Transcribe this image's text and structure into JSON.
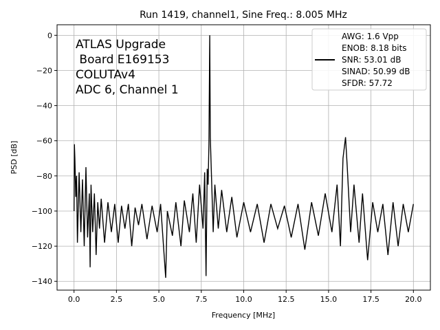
{
  "chart_data": {
    "type": "line",
    "title": "Run 1419, channel1, Sine Freq.: 8.005 MHz",
    "xlabel": "Frequency [MHz]",
    "ylabel": "PSD [dB]",
    "xlim": [
      -1.0,
      21.0
    ],
    "ylim": [
      -145,
      6
    ],
    "xticks": [
      0.0,
      2.5,
      5.0,
      7.5,
      10.0,
      12.5,
      15.0,
      17.5,
      20.0
    ],
    "xtick_labels": [
      "0.0",
      "2.5",
      "5.0",
      "7.5",
      "10.0",
      "12.5",
      "15.0",
      "17.5",
      "20.0"
    ],
    "yticks": [
      0,
      -20,
      -40,
      -60,
      -80,
      -100,
      -120,
      -140
    ],
    "ytick_labels": [
      "0",
      "−20",
      "−40",
      "−60",
      "−80",
      "−100",
      "−120",
      "−140"
    ],
    "grid": true,
    "series_color": "#000000",
    "annotation_lines": [
      "ATLAS Upgrade",
      " Board E169153",
      "COLUTAv4",
      "ADC 6, Channel 1"
    ],
    "legend": {
      "placement": "top-right",
      "lines": [
        "AWG: 1.6 Vpp",
        "ENOB: 8.18 bits",
        "SNR: 53.01 dB",
        "SINAD: 50.99 dB",
        "SFDR: 57.72"
      ]
    },
    "series": [
      {
        "points": [
          [
            0.0,
            -100
          ],
          [
            0.02,
            -62
          ],
          [
            0.05,
            -70
          ],
          [
            0.1,
            -92
          ],
          [
            0.15,
            -80
          ],
          [
            0.2,
            -118
          ],
          [
            0.3,
            -78
          ],
          [
            0.4,
            -112
          ],
          [
            0.5,
            -82
          ],
          [
            0.6,
            -120
          ],
          [
            0.7,
            -75
          ],
          [
            0.8,
            -115
          ],
          [
            0.9,
            -90
          ],
          [
            0.95,
            -132
          ],
          [
            1.0,
            -85
          ],
          [
            1.1,
            -112
          ],
          [
            1.2,
            -90
          ],
          [
            1.3,
            -125
          ],
          [
            1.4,
            -95
          ],
          [
            1.5,
            -110
          ],
          [
            1.6,
            -93
          ],
          [
            1.8,
            -118
          ],
          [
            2.0,
            -95
          ],
          [
            2.2,
            -112
          ],
          [
            2.4,
            -96
          ],
          [
            2.6,
            -118
          ],
          [
            2.8,
            -97
          ],
          [
            3.0,
            -110
          ],
          [
            3.2,
            -96
          ],
          [
            3.4,
            -120
          ],
          [
            3.6,
            -98
          ],
          [
            3.8,
            -108
          ],
          [
            4.0,
            -96
          ],
          [
            4.3,
            -116
          ],
          [
            4.6,
            -97
          ],
          [
            4.9,
            -112
          ],
          [
            5.1,
            -96
          ],
          [
            5.4,
            -138
          ],
          [
            5.5,
            -100
          ],
          [
            5.8,
            -114
          ],
          [
            6.0,
            -95
          ],
          [
            6.3,
            -120
          ],
          [
            6.5,
            -94
          ],
          [
            6.8,
            -112
          ],
          [
            7.0,
            -90
          ],
          [
            7.2,
            -118
          ],
          [
            7.4,
            -85
          ],
          [
            7.6,
            -110
          ],
          [
            7.7,
            -78
          ],
          [
            7.78,
            -137
          ],
          [
            7.85,
            -76
          ],
          [
            7.9,
            -85
          ],
          [
            7.95,
            -62
          ],
          [
            8.0,
            0
          ],
          [
            8.03,
            -58
          ],
          [
            8.1,
            -80
          ],
          [
            8.2,
            -112
          ],
          [
            8.3,
            -85
          ],
          [
            8.5,
            -110
          ],
          [
            8.7,
            -88
          ],
          [
            9.0,
            -112
          ],
          [
            9.3,
            -92
          ],
          [
            9.6,
            -115
          ],
          [
            10.0,
            -95
          ],
          [
            10.4,
            -112
          ],
          [
            10.8,
            -96
          ],
          [
            11.2,
            -118
          ],
          [
            11.6,
            -96
          ],
          [
            12.0,
            -110
          ],
          [
            12.4,
            -97
          ],
          [
            12.8,
            -115
          ],
          [
            13.2,
            -96
          ],
          [
            13.6,
            -122
          ],
          [
            14.0,
            -95
          ],
          [
            14.4,
            -114
          ],
          [
            14.8,
            -90
          ],
          [
            15.2,
            -112
          ],
          [
            15.5,
            -85
          ],
          [
            15.7,
            -120
          ],
          [
            15.85,
            -70
          ],
          [
            16.0,
            -58
          ],
          [
            16.1,
            -75
          ],
          [
            16.3,
            -112
          ],
          [
            16.5,
            -85
          ],
          [
            16.8,
            -118
          ],
          [
            17.0,
            -90
          ],
          [
            17.3,
            -128
          ],
          [
            17.6,
            -95
          ],
          [
            17.9,
            -112
          ],
          [
            18.2,
            -96
          ],
          [
            18.5,
            -125
          ],
          [
            18.8,
            -95
          ],
          [
            19.1,
            -120
          ],
          [
            19.4,
            -96
          ],
          [
            19.7,
            -112
          ],
          [
            20.0,
            -96
          ]
        ]
      }
    ]
  }
}
